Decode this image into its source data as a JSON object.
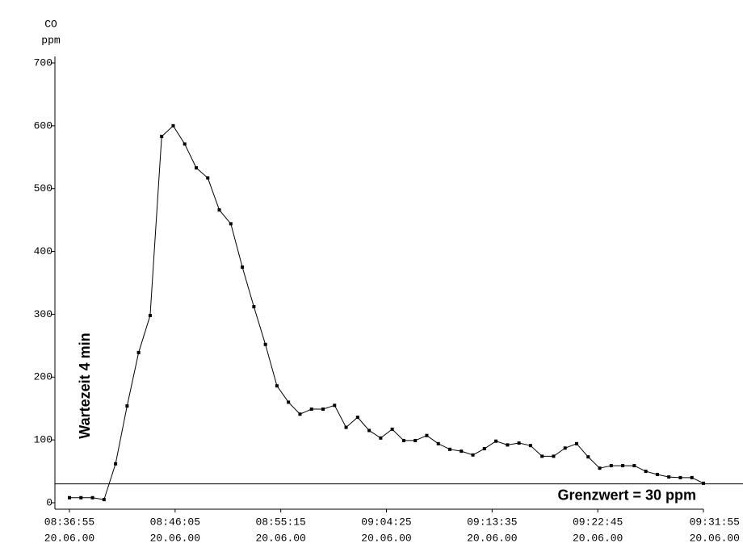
{
  "chart_data": {
    "type": "line",
    "y_label": [
      "CO",
      "ppm"
    ],
    "annotation": "Wartezeit 4 min",
    "limit": {
      "value": 30,
      "label": "Grenzwert = 30 ppm"
    },
    "x": [
      "08:36:55",
      "08:37:55",
      "08:38:55",
      "08:39:55",
      "08:40:55",
      "08:41:55",
      "08:42:55",
      "08:43:55",
      "08:44:55",
      "08:45:55",
      "08:46:55",
      "08:47:55",
      "08:48:55",
      "08:49:55",
      "08:50:55",
      "08:51:55",
      "08:52:55",
      "08:53:55",
      "08:54:55",
      "08:55:55",
      "08:56:55",
      "08:57:55",
      "08:58:55",
      "08:59:55",
      "09:00:55",
      "09:01:55",
      "09:02:55",
      "09:03:55",
      "09:04:55",
      "09:05:55",
      "09:06:55",
      "09:07:55",
      "09:08:55",
      "09:09:55",
      "09:10:55",
      "09:11:55",
      "09:12:55",
      "09:13:55",
      "09:14:55",
      "09:15:55",
      "09:16:55",
      "09:17:55",
      "09:18:55",
      "09:19:55",
      "09:20:55",
      "09:21:55",
      "09:22:55",
      "09:23:55",
      "09:24:55",
      "09:25:55",
      "09:26:55",
      "09:27:55",
      "09:28:55",
      "09:29:55",
      "09:30:55",
      "09:31:55"
    ],
    "series": [
      {
        "color": "#000000",
        "values": [
          8,
          8,
          8,
          5,
          62,
          154,
          239,
          298,
          583,
          600,
          571,
          533,
          517,
          466,
          444,
          375,
          312,
          252,
          186,
          160,
          141,
          149,
          149,
          155,
          120,
          136,
          115,
          103,
          117,
          99,
          99,
          107,
          94,
          85,
          82,
          76,
          86,
          98,
          92,
          95,
          91,
          74,
          74,
          87,
          94,
          73,
          55,
          59,
          59,
          59,
          50,
          45,
          41,
          40,
          40,
          31
        ]
      }
    ],
    "xlim": [
      "08:36:55",
      "09:31:55"
    ],
    "xticks": [
      {
        "time": "08:36:55",
        "date": "20.06.00"
      },
      {
        "time": "08:46:05",
        "date": "20.06.00"
      },
      {
        "time": "08:55:15",
        "date": "20.06.00"
      },
      {
        "time": "09:04:25",
        "date": "20.06.00"
      },
      {
        "time": "09:13:35",
        "date": "20.06.00"
      },
      {
        "time": "09:22:45",
        "date": "20.06.00"
      },
      {
        "time": "09:31:55",
        "date": "20.06.00"
      }
    ],
    "ylim": [
      0,
      700
    ],
    "yticks": [
      0,
      100,
      200,
      300,
      400,
      500,
      600,
      700
    ]
  }
}
